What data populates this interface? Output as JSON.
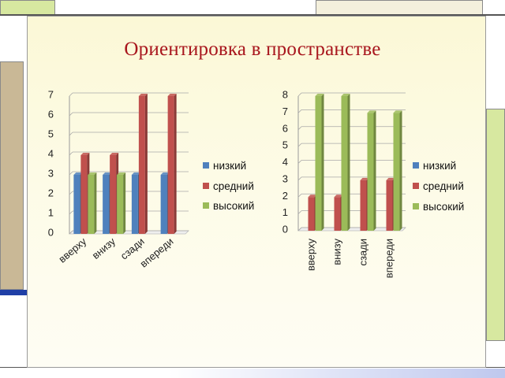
{
  "title": "Ориентировка в пространстве",
  "colors": {
    "series": [
      "#4f81bd",
      "#c0504d",
      "#9bbb59"
    ],
    "title": "#a8161d",
    "frame_green": "#d7e8a0",
    "frame_tan": "#c9b896",
    "accent_blue": "#1f3fa6"
  },
  "chart_data": [
    {
      "type": "bar",
      "categories": [
        "вверху",
        "внизу",
        "сзади",
        "впереди"
      ],
      "series": [
        {
          "name": "низкий",
          "values": [
            3,
            3,
            3,
            3
          ]
        },
        {
          "name": "средний",
          "values": [
            4,
            4,
            7,
            7
          ]
        },
        {
          "name": "высокий",
          "values": [
            3,
            3,
            0,
            0
          ]
        }
      ],
      "yticks": [
        0,
        1,
        2,
        3,
        4,
        5,
        6,
        7
      ],
      "ylim": [
        0,
        7
      ],
      "grid": true,
      "legend": "right"
    },
    {
      "type": "bar",
      "categories": [
        "вверху",
        "внизу",
        "сзади",
        "впереди"
      ],
      "series": [
        {
          "name": "низкий",
          "values": [
            0,
            0,
            0,
            0
          ]
        },
        {
          "name": "средний",
          "values": [
            2,
            2,
            3,
            3
          ]
        },
        {
          "name": "высокий",
          "values": [
            8,
            8,
            7,
            7
          ]
        }
      ],
      "yticks": [
        0,
        1,
        2,
        3,
        4,
        5,
        6,
        7,
        8
      ],
      "ylim": [
        0,
        8
      ],
      "grid": true,
      "legend": "right"
    }
  ]
}
